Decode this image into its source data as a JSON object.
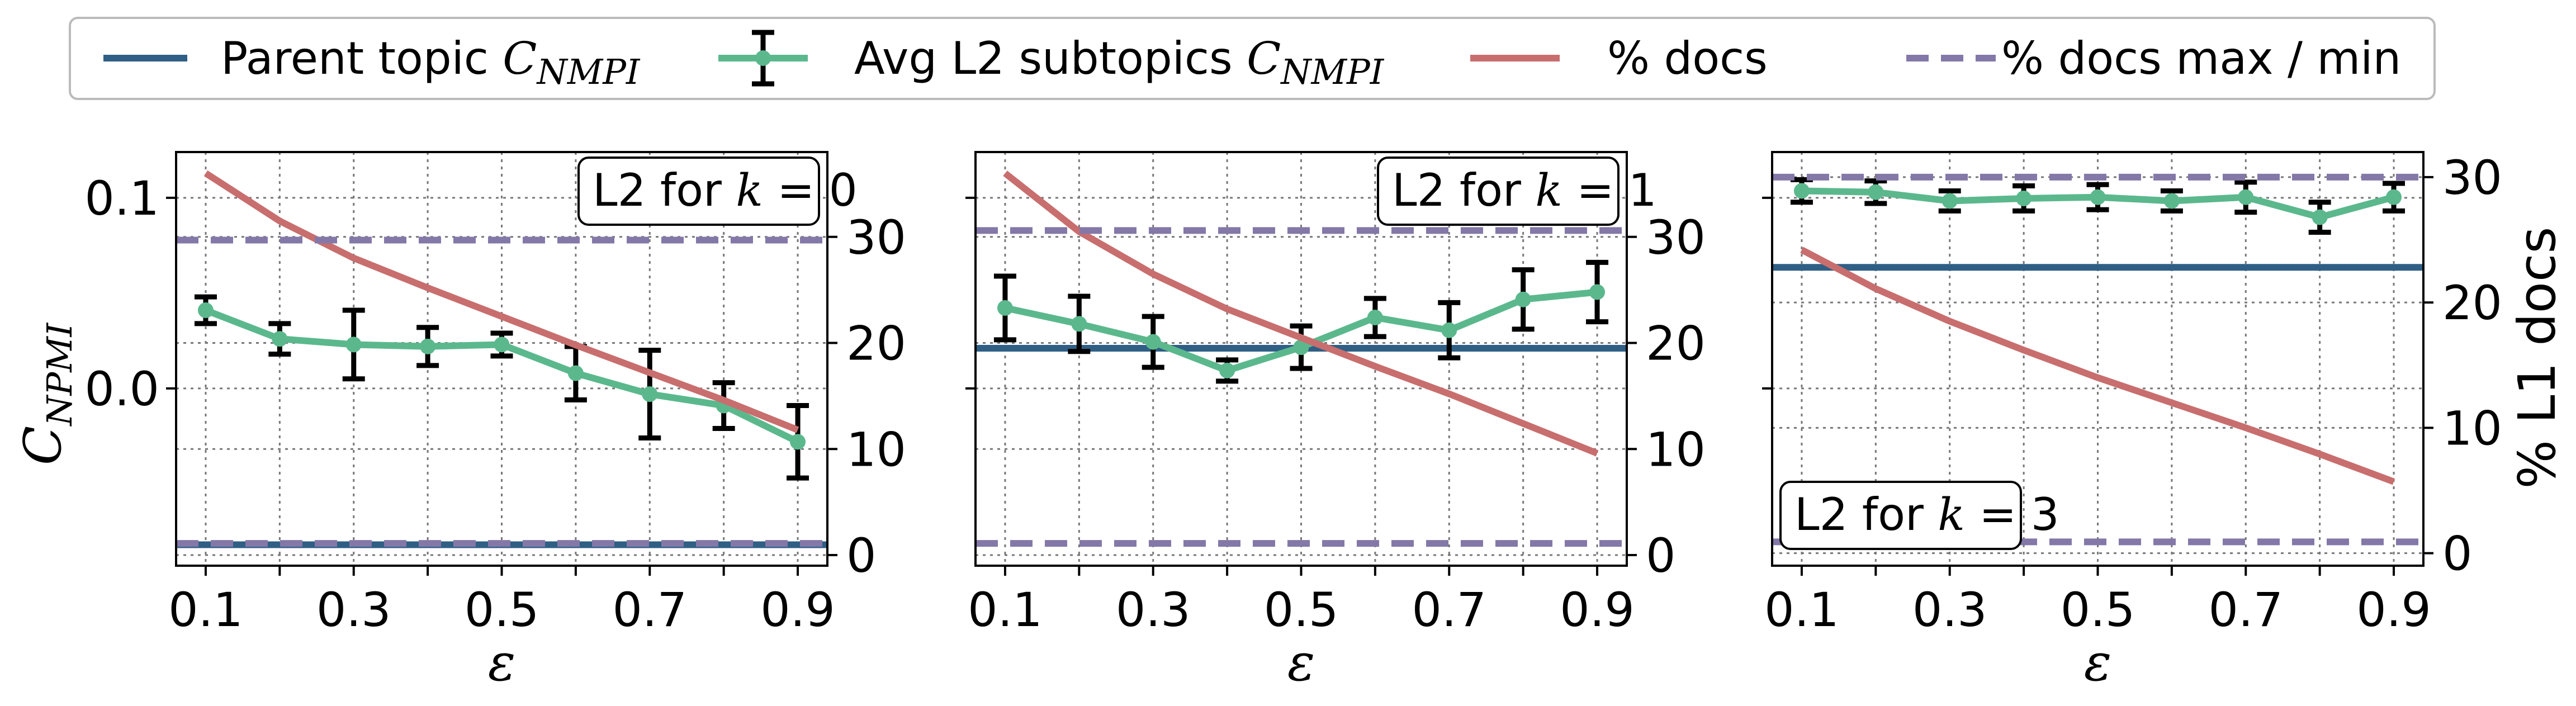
{
  "legend": {
    "parent_label": "Parent topic ",
    "parent_sub": "NMPI",
    "avg_label": "Avg L2 subtopics ",
    "avg_sub": "NMPI",
    "cvar": "C",
    "pct_label": "% docs",
    "maxmin_label": "% docs max / min"
  },
  "colors": {
    "parent": "#2f5f85",
    "avg": "#5bb88d",
    "pct": "#c86e6e",
    "maxmin": "#8478a8",
    "errbar": "#000000"
  },
  "axes_text": {
    "ylabel_left_var": "C",
    "ylabel_left_sub": "NPMI",
    "ylabel_right": "% L1 docs",
    "xlabel": "ε"
  },
  "chart_data": [
    {
      "type": "line",
      "panel_label": {
        "prefix": "L2 for ",
        "var": "k",
        "eq": " = ",
        "value": "0"
      },
      "x": [
        0.1,
        0.2,
        0.3,
        0.4,
        0.5,
        0.6,
        0.7,
        0.8,
        0.9
      ],
      "xticks": [
        "0.1",
        "0.3",
        "0.5",
        "0.7",
        "0.9"
      ],
      "xlim": [
        0.06,
        0.94
      ],
      "ylim_left": [
        -0.093,
        0.124
      ],
      "yticks_left": [
        "0.1",
        "0.0"
      ],
      "ylim_right": [
        -1,
        38
      ],
      "yticks_right": [
        "0",
        "10",
        "20",
        "30"
      ],
      "grid": true,
      "series": [
        {
          "name": "Parent topic C_NMPI",
          "axis": "left",
          "style": "solid",
          "values": [
            -0.082,
            -0.082,
            -0.082,
            -0.082,
            -0.082,
            -0.082,
            -0.082,
            -0.082,
            -0.082
          ]
        },
        {
          "name": "Avg L2 subtopics C_NMPI",
          "axis": "left",
          "style": "errorbar",
          "values": [
            0.041,
            0.026,
            0.023,
            0.022,
            0.023,
            0.008,
            -0.003,
            -0.009,
            -0.028
          ],
          "errors": [
            0.007,
            0.008,
            0.018,
            0.01,
            0.006,
            0.014,
            0.023,
            0.012,
            0.019
          ]
        },
        {
          "name": "% docs",
          "axis": "right",
          "style": "solid",
          "values": [
            36,
            31.5,
            28,
            25.2,
            22.5,
            19.8,
            17.2,
            14.6,
            11.8
          ]
        },
        {
          "name": "% docs max",
          "axis": "right",
          "style": "dashed",
          "values": [
            29.7,
            29.7,
            29.7,
            29.7,
            29.7,
            29.7,
            29.7,
            29.7,
            29.7
          ]
        },
        {
          "name": "% docs min",
          "axis": "right",
          "style": "dashed",
          "values": [
            1.1,
            1.1,
            1.1,
            1.1,
            1.1,
            1.1,
            1.1,
            1.1,
            1.1
          ]
        }
      ]
    },
    {
      "type": "line",
      "panel_label": {
        "prefix": "L2 for ",
        "var": "k",
        "eq": " = ",
        "value": "1"
      },
      "x": [
        0.1,
        0.2,
        0.3,
        0.4,
        0.5,
        0.6,
        0.7,
        0.8,
        0.9
      ],
      "xticks": [
        "0.1",
        "0.3",
        "0.5",
        "0.7",
        "0.9"
      ],
      "xlim": [
        0.06,
        0.94
      ],
      "ylim_left": [
        -0.093,
        0.124
      ],
      "yticks_left": [],
      "ylim_right": [
        -1,
        38
      ],
      "yticks_right": [
        "0",
        "10",
        "20",
        "30"
      ],
      "grid": true,
      "series": [
        {
          "name": "Parent topic C_NMPI",
          "axis": "right",
          "style": "solid",
          "values": [
            19.5,
            19.5,
            19.5,
            19.5,
            19.5,
            19.5,
            19.5,
            19.5,
            19.5
          ]
        },
        {
          "name": "Avg L2 subtopics C_NMPI",
          "axis": "right",
          "style": "errorbar",
          "values": [
            23.3,
            21.8,
            20.1,
            17.4,
            19.6,
            22.4,
            21.2,
            24.1,
            24.8
          ],
          "errors": [
            3.0,
            2.6,
            2.4,
            1.0,
            2.0,
            1.8,
            2.6,
            2.8,
            2.8
          ]
        },
        {
          "name": "% docs",
          "axis": "right",
          "style": "solid",
          "values": [
            36,
            30.5,
            26.5,
            23.2,
            20.5,
            17.8,
            15.2,
            12.4,
            9.6
          ]
        },
        {
          "name": "% docs max",
          "axis": "right",
          "style": "dashed",
          "values": [
            30.6,
            30.6,
            30.6,
            30.6,
            30.6,
            30.6,
            30.6,
            30.6,
            30.6
          ]
        },
        {
          "name": "% docs min",
          "axis": "right",
          "style": "dashed",
          "values": [
            1.1,
            1.1,
            1.1,
            1.1,
            1.1,
            1.1,
            1.1,
            1.1,
            1.1
          ]
        }
      ]
    },
    {
      "type": "line",
      "panel_label": {
        "prefix": "L2 for ",
        "var": "k",
        "eq": " = ",
        "value": "3"
      },
      "x": [
        0.1,
        0.2,
        0.3,
        0.4,
        0.5,
        0.6,
        0.7,
        0.8,
        0.9
      ],
      "xticks": [
        "0.1",
        "0.3",
        "0.5",
        "0.7",
        "0.9"
      ],
      "xlim": [
        0.06,
        0.94
      ],
      "ylim_left": [
        -0.093,
        0.124
      ],
      "yticks_left": [],
      "ylim_right": [
        -1,
        32
      ],
      "yticks_right": [
        "0",
        "10",
        "20",
        "30"
      ],
      "grid": true,
      "series": [
        {
          "name": "Parent topic C_NMPI",
          "axis": "right",
          "style": "solid",
          "values": [
            22.8,
            22.8,
            22.8,
            22.8,
            22.8,
            22.8,
            22.8,
            22.8,
            22.8
          ]
        },
        {
          "name": "Avg L2 subtopics C_NMPI",
          "axis": "right",
          "style": "errorbar",
          "values": [
            28.9,
            28.8,
            28.1,
            28.3,
            28.4,
            28.1,
            28.4,
            26.8,
            28.4
          ],
          "errors": [
            0.9,
            0.9,
            0.8,
            1.0,
            1.0,
            0.8,
            1.2,
            1.2,
            1.1
          ]
        },
        {
          "name": "% docs",
          "axis": "right",
          "style": "solid",
          "values": [
            24.2,
            21.1,
            18.5,
            16.2,
            14.0,
            12.0,
            10.0,
            7.9,
            5.7
          ]
        },
        {
          "name": "% docs max",
          "axis": "right",
          "style": "dashed",
          "values": [
            30.0,
            30.0,
            30.0,
            30.0,
            30.0,
            30.0,
            30.0,
            30.0,
            30.0
          ]
        },
        {
          "name": "% docs min",
          "axis": "right",
          "style": "dashed",
          "values": [
            0.9,
            0.9,
            0.9,
            0.9,
            0.9,
            0.9,
            0.9,
            0.9,
            0.9
          ]
        }
      ]
    }
  ]
}
